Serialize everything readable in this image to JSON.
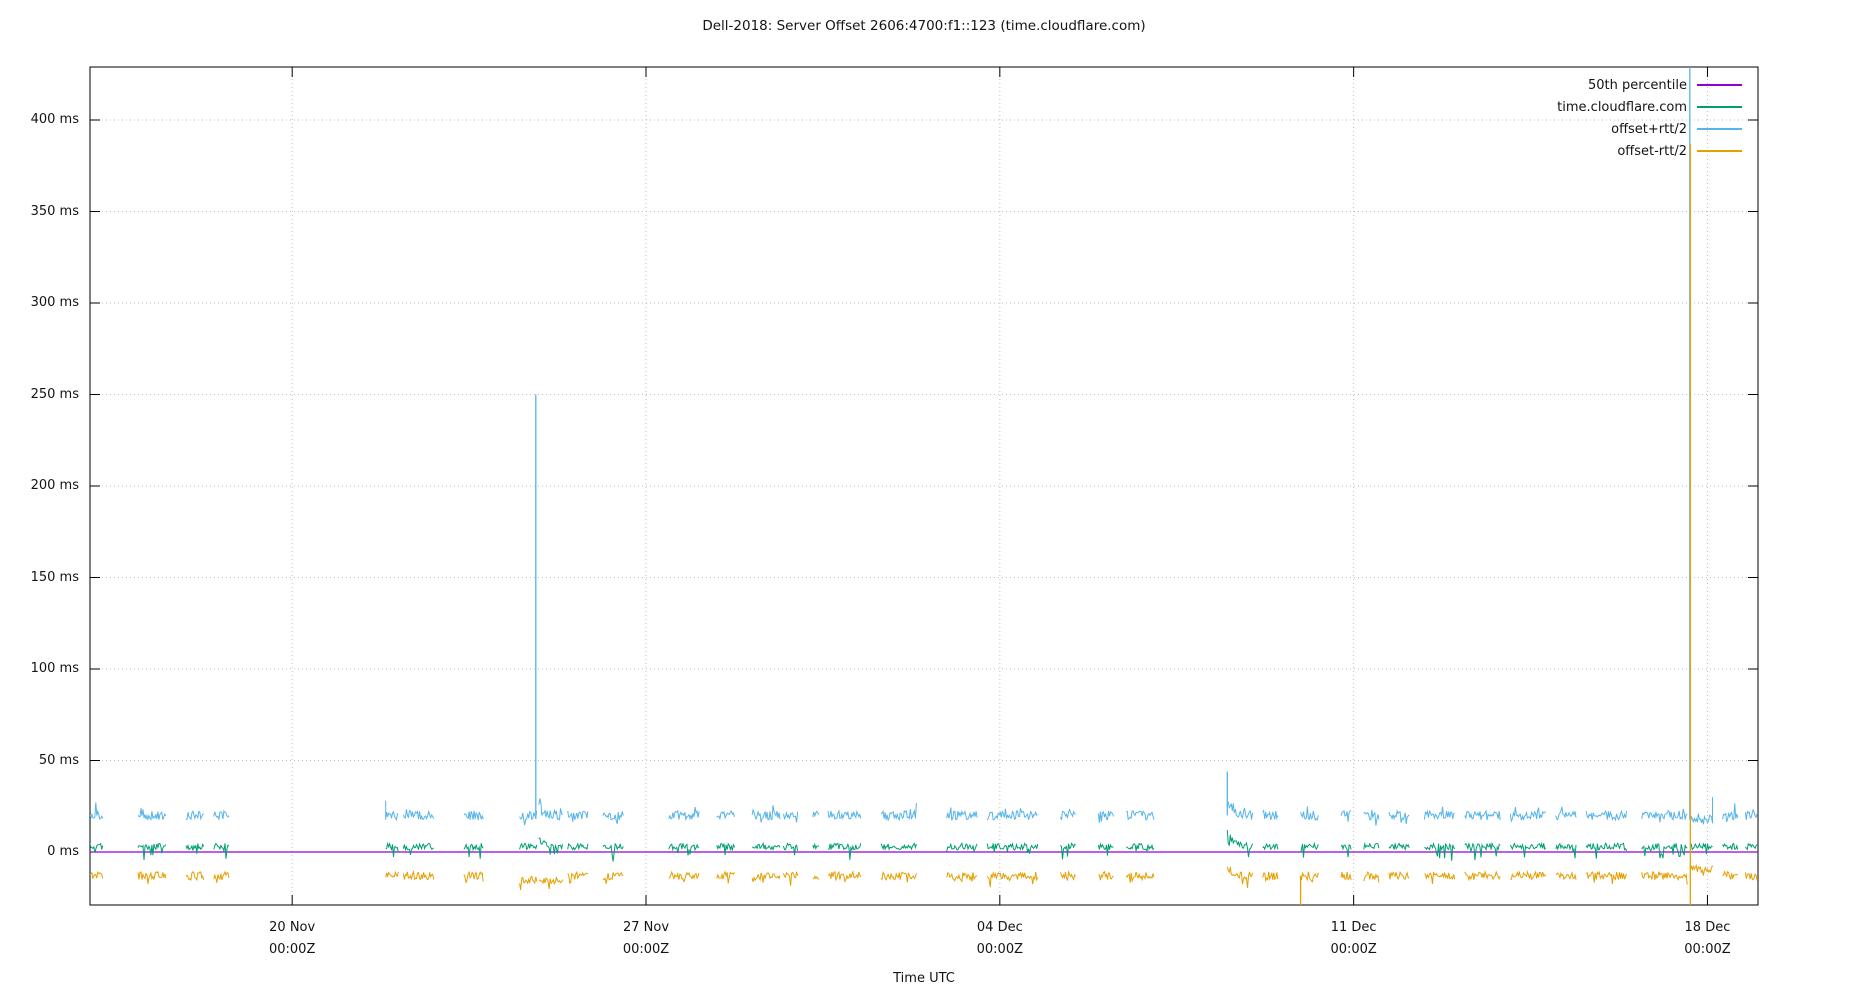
{
  "chart_data": {
    "type": "line",
    "title": "Dell-2018: Server Offset 2606:4700:f1::123 (time.cloudflare.com)",
    "xlabel": "Time UTC",
    "ylabel": "",
    "y_unit": "ms",
    "grid": true,
    "legend_position": "top-right-inside",
    "y_ticks": [
      {
        "label": "0 ms",
        "value": 0
      },
      {
        "label": "50 ms",
        "value": 50
      },
      {
        "label": "100 ms",
        "value": 100
      },
      {
        "label": "150 ms",
        "value": 150
      },
      {
        "label": "200 ms",
        "value": 200
      },
      {
        "label": "250 ms",
        "value": 250
      },
      {
        "label": "300 ms",
        "value": 300
      },
      {
        "label": "350 ms",
        "value": 350
      },
      {
        "label": "400 ms",
        "value": 400
      }
    ],
    "x_ticks": [
      {
        "label": "20 Nov",
        "sub": "00:00Z",
        "day": 4
      },
      {
        "label": "27 Nov",
        "sub": "00:00Z",
        "day": 11
      },
      {
        "label": "04 Dec",
        "sub": "00:00Z",
        "day": 18
      },
      {
        "label": "11 Dec",
        "sub": "00:00Z",
        "day": 25
      },
      {
        "label": "18 Dec",
        "sub": "00:00Z",
        "day": 32
      }
    ],
    "x_axis": {
      "domain_days": [
        0,
        33
      ],
      "tick_days": [
        4,
        11,
        18,
        25,
        32
      ]
    },
    "ylim": [
      -29,
      429
    ],
    "series": [
      {
        "name": "50th percentile",
        "color": "#9400d3",
        "style": "constant",
        "value_ms": 0
      },
      {
        "name": "time.cloudflare.com",
        "color": "#009e73",
        "baseline_ms": 3,
        "noise_ms": 3
      },
      {
        "name": "offset+rtt/2",
        "color": "#56b4e9",
        "baseline_ms": 20,
        "noise_ms": 4
      },
      {
        "name": "offset-rtt/2",
        "color": "#e69f00",
        "baseline_ms": -13,
        "noise_ms": 4
      }
    ],
    "segments": [
      {
        "s": 0.0,
        "e": 0.25
      },
      {
        "s": 0.95,
        "e": 1.5
      },
      {
        "s": 1.9,
        "e": 2.25
      },
      {
        "s": 2.45,
        "e": 2.75
      },
      {
        "s": 5.85,
        "e": 6.1,
        "ss": 28
      },
      {
        "s": 6.2,
        "e": 6.8
      },
      {
        "s": 7.4,
        "e": 7.78
      },
      {
        "s": 8.5,
        "e": 8.84,
        "o": -15
      },
      {
        "s": 8.88,
        "e": 9.35,
        "dk": 0.5,
        "o": -16
      },
      {
        "s": 9.45,
        "e": 9.85
      },
      {
        "s": 10.15,
        "e": 10.55
      },
      {
        "s": 11.45,
        "e": 12.05
      },
      {
        "s": 12.4,
        "e": 12.75
      },
      {
        "s": 13.1,
        "e": 13.65
      },
      {
        "s": 13.72,
        "e": 14.0
      },
      {
        "s": 14.3,
        "e": 14.42
      },
      {
        "s": 14.6,
        "e": 15.25
      },
      {
        "s": 15.65,
        "e": 16.35
      },
      {
        "s": 16.95,
        "e": 17.55
      },
      {
        "s": 17.75,
        "e": 18.75
      },
      {
        "s": 19.2,
        "e": 19.5
      },
      {
        "s": 19.95,
        "e": 20.25
      },
      {
        "s": 20.5,
        "e": 21.05
      },
      {
        "s": 22.5,
        "e": 23.0,
        "dk": 1
      },
      {
        "s": 23.2,
        "e": 23.5
      },
      {
        "s": 23.95,
        "e": 24.3
      },
      {
        "s": 24.75,
        "e": 24.95
      },
      {
        "s": 25.2,
        "e": 25.5
      },
      {
        "s": 25.7,
        "e": 26.1
      },
      {
        "s": 26.4,
        "e": 27.0
      },
      {
        "s": 27.2,
        "e": 27.9
      },
      {
        "s": 28.1,
        "e": 28.8
      },
      {
        "s": 29.0,
        "e": 29.4
      },
      {
        "s": 29.6,
        "e": 30.4
      },
      {
        "s": 30.7,
        "e": 31.6
      },
      {
        "s": 31.66,
        "e": 32.1,
        "o": -9,
        "b": 18,
        "es": 30
      },
      {
        "s": 32.3,
        "e": 32.6
      },
      {
        "s": 32.75,
        "e": 33.0
      }
    ],
    "events": [
      {
        "day": 8.82,
        "series": "offset+rtt/2",
        "from_ms": 18,
        "to_ms": 250
      },
      {
        "day": 22.5,
        "series": "offset+rtt/2",
        "from_ms": 20,
        "to_ms": 44
      },
      {
        "day": 23.95,
        "series": "offset-rtt/2",
        "from_ms": -13,
        "to_ms": -29
      },
      {
        "day": 31.65,
        "series": "offset+rtt/2",
        "from_ms": 429,
        "to_ms": 18
      },
      {
        "day": 31.66,
        "series": "offset-rtt/2",
        "from_ms": 387,
        "to_ms": -29
      }
    ]
  }
}
